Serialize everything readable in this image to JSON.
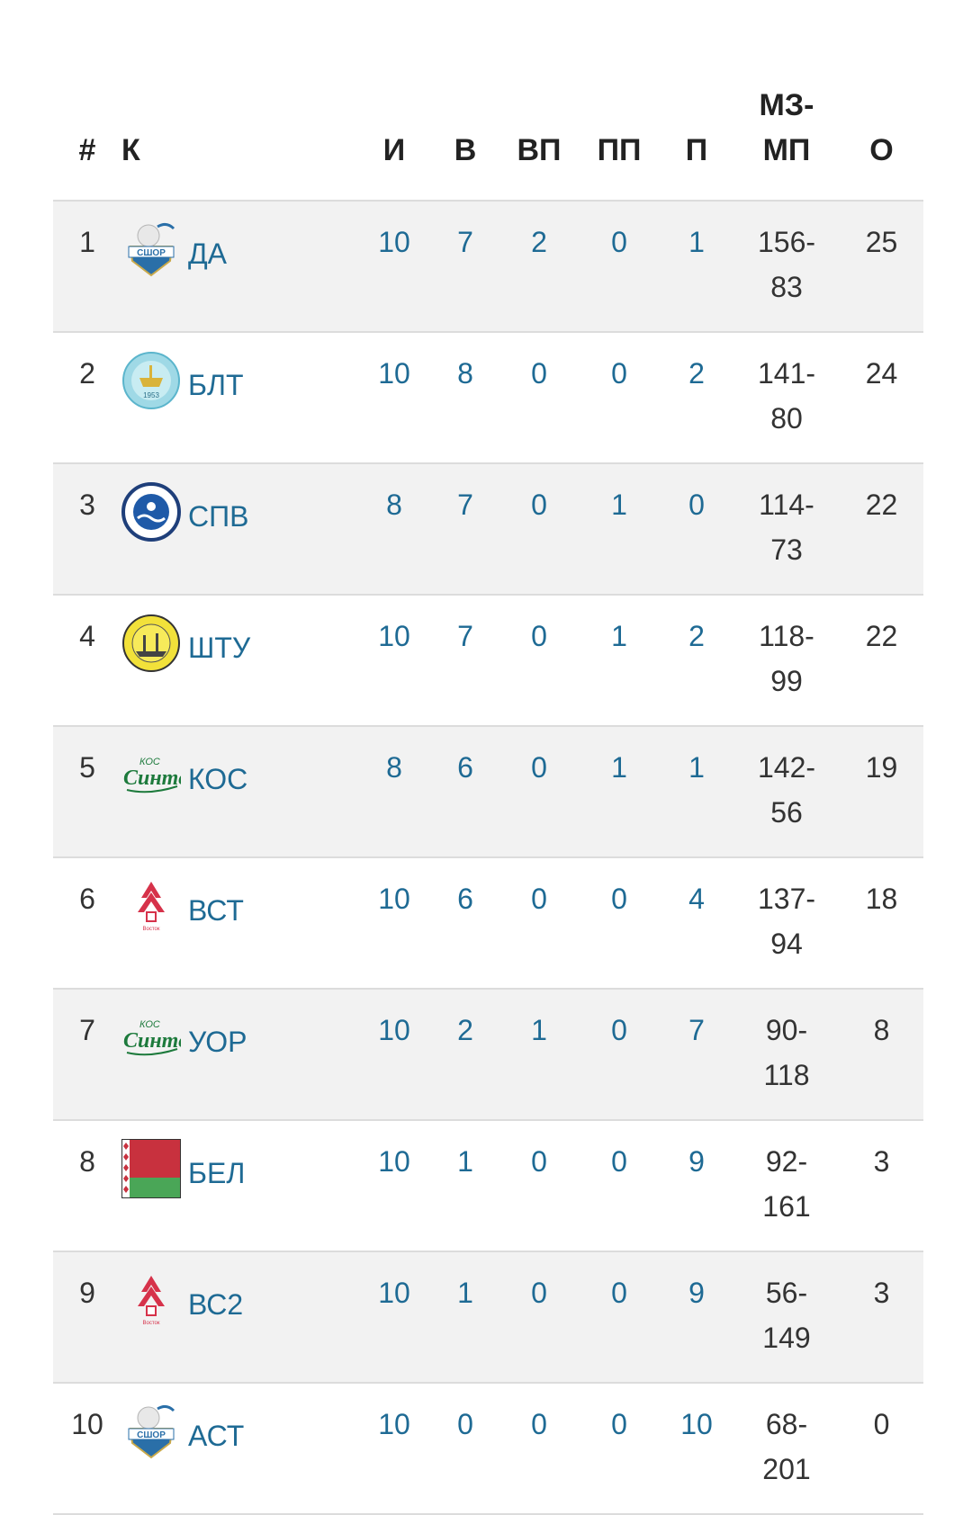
{
  "headers": {
    "rank": "#",
    "team": "К",
    "played": "И",
    "wins": "В",
    "ot_wins": "ВП",
    "ot_losses": "ПП",
    "losses": "П",
    "goals_line1": "МЗ-",
    "goals_line2": "МП",
    "points": "О"
  },
  "rows": [
    {
      "rank": "1",
      "team": "ДА",
      "logo": "sshor-logo",
      "played": "10",
      "wins": "7",
      "ot_wins": "2",
      "ot_losses": "0",
      "losses": "1",
      "goals_a": "156-",
      "goals_b": "83",
      "points": "25"
    },
    {
      "rank": "2",
      "team": "БЛТ",
      "logo": "baltika-logo",
      "played": "10",
      "wins": "8",
      "ot_wins": "0",
      "ot_losses": "0",
      "losses": "2",
      "goals_a": "141-",
      "goals_b": "80",
      "points": "24"
    },
    {
      "rank": "3",
      "team": "СПВ",
      "logo": "waterpolo-logo",
      "played": "8",
      "wins": "7",
      "ot_wins": "0",
      "ot_losses": "1",
      "losses": "0",
      "goals_a": "114-",
      "goals_b": "73",
      "points": "22"
    },
    {
      "rank": "4",
      "team": "ШТУ",
      "logo": "shturm-logo",
      "played": "10",
      "wins": "7",
      "ot_wins": "0",
      "ot_losses": "1",
      "losses": "2",
      "goals_a": "118-",
      "goals_b": "99",
      "points": "22"
    },
    {
      "rank": "5",
      "team": "КОС",
      "logo": "sintez-logo",
      "played": "8",
      "wins": "6",
      "ot_wins": "0",
      "ot_losses": "1",
      "losses": "1",
      "goals_a": "142-",
      "goals_b": "56",
      "points": "19"
    },
    {
      "rank": "6",
      "team": "ВСТ",
      "logo": "vostok-logo",
      "played": "10",
      "wins": "6",
      "ot_wins": "0",
      "ot_losses": "0",
      "losses": "4",
      "goals_a": "137-",
      "goals_b": "94",
      "points": "18"
    },
    {
      "rank": "7",
      "team": "УОР",
      "logo": "sintez-logo",
      "played": "10",
      "wins": "2",
      "ot_wins": "1",
      "ot_losses": "0",
      "losses": "7",
      "goals_a": "90-",
      "goals_b": "118",
      "points": "8"
    },
    {
      "rank": "8",
      "team": "БЕЛ",
      "logo": "belarus-flag",
      "played": "10",
      "wins": "1",
      "ot_wins": "0",
      "ot_losses": "0",
      "losses": "9",
      "goals_a": "92-",
      "goals_b": "161",
      "points": "3"
    },
    {
      "rank": "9",
      "team": "ВС2",
      "logo": "vostok-logo",
      "played": "10",
      "wins": "1",
      "ot_wins": "0",
      "ot_losses": "0",
      "losses": "9",
      "goals_a": "56-",
      "goals_b": "149",
      "points": "3"
    },
    {
      "rank": "10",
      "team": "АСТ",
      "logo": "sshor-logo",
      "played": "10",
      "wins": "0",
      "ot_wins": "0",
      "ot_losses": "0",
      "losses": "10",
      "goals_a": "68-",
      "goals_b": "201",
      "points": "0"
    }
  ],
  "colors": {
    "link": "#1e6a94",
    "stripe": "#f2f2f2",
    "border": "#dcdcdc"
  }
}
